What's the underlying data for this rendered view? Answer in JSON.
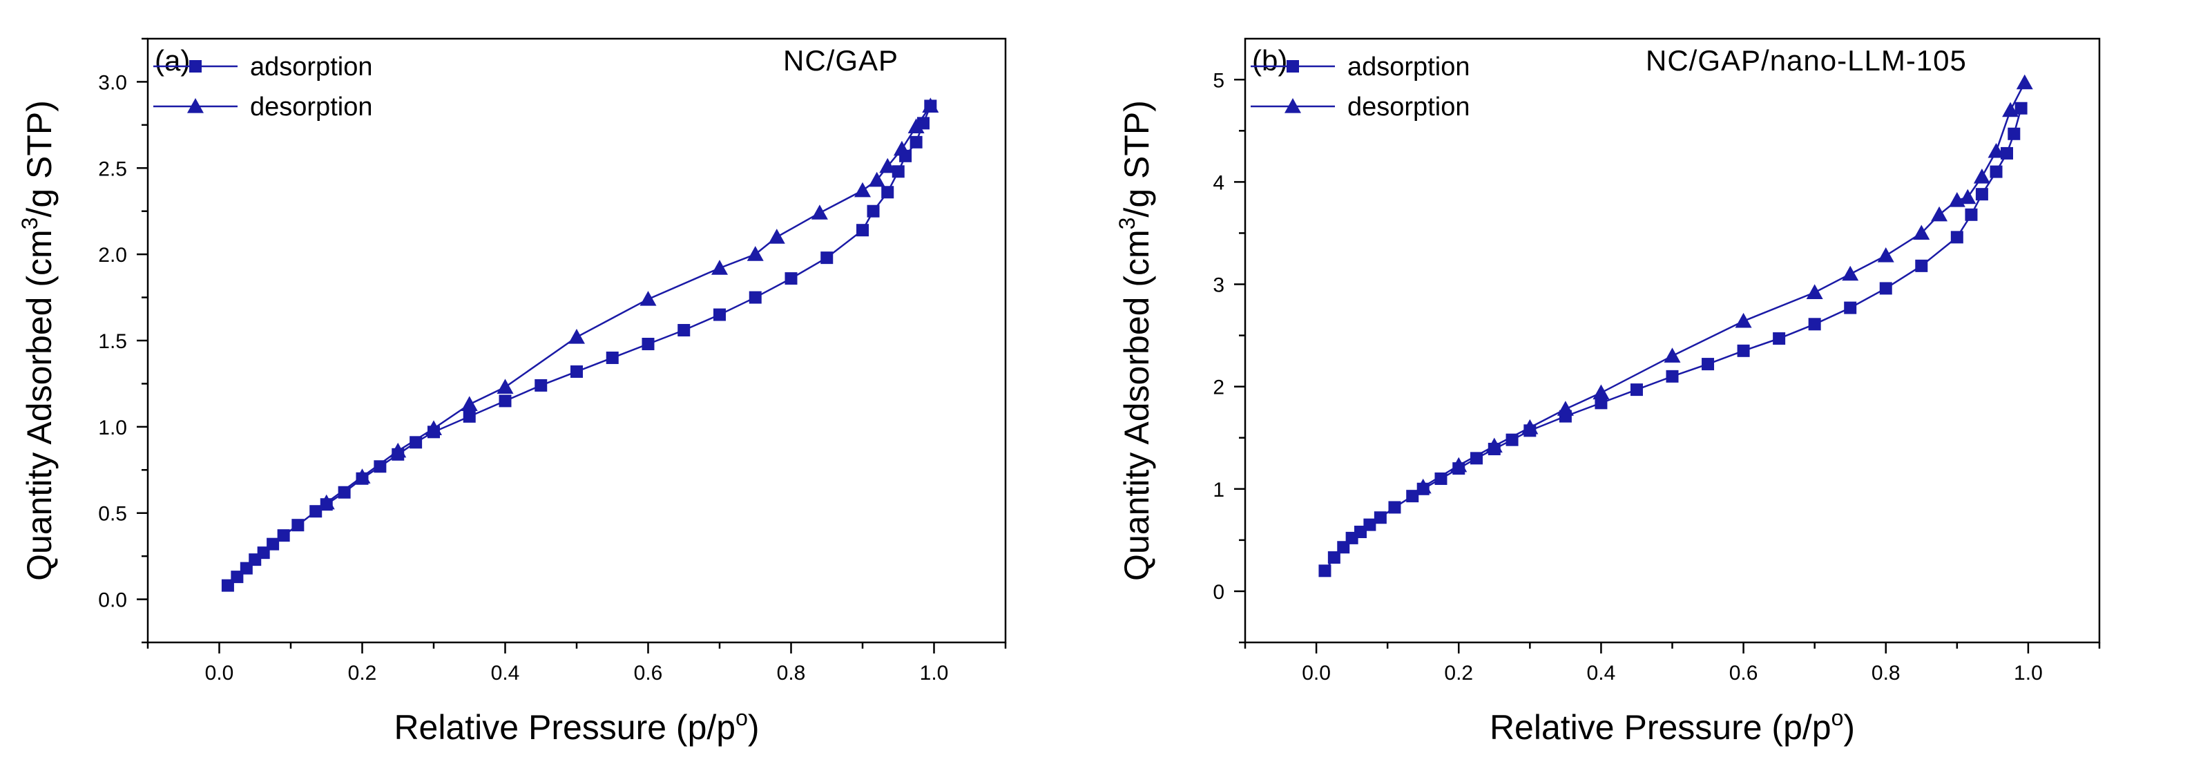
{
  "chart_data": [
    {
      "type": "line",
      "panel_label": "(a)",
      "title": "NC/GAP",
      "xlabel": "Relative Pressure (p/p",
      "xlabel_sup": "o",
      "xlabel_end": ")",
      "ylabel_pre": "Quantity Adsorbed (cm",
      "ylabel_sup": "3",
      "ylabel_post": "/g STP)",
      "xlim": [
        -0.1,
        1.1
      ],
      "ylim": [
        -0.25,
        3.25
      ],
      "x_ticks": [
        0.0,
        0.2,
        0.4,
        0.6,
        0.8,
        1.0
      ],
      "x_tick_labels": [
        "0.0",
        "0.2",
        "0.4",
        "0.6",
        "0.8",
        "1.0"
      ],
      "y_ticks": [
        0.0,
        0.5,
        1.0,
        1.5,
        2.0,
        2.5,
        3.0
      ],
      "y_tick_labels": [
        "0.0",
        "0.5",
        "1.0",
        "1.5",
        "2.0",
        "2.5",
        "3.0"
      ],
      "legend_position": "top-left",
      "series": [
        {
          "name": "adsorption",
          "marker": "square",
          "color": "#1a1aa6",
          "x": [
            0.012,
            0.025,
            0.038,
            0.05,
            0.062,
            0.075,
            0.09,
            0.11,
            0.135,
            0.15,
            0.175,
            0.2,
            0.225,
            0.25,
            0.275,
            0.3,
            0.35,
            0.4,
            0.45,
            0.5,
            0.55,
            0.6,
            0.65,
            0.7,
            0.75,
            0.8,
            0.85,
            0.9,
            0.915,
            0.935,
            0.95,
            0.96,
            0.975,
            0.985,
            0.995
          ],
          "y": [
            0.08,
            0.13,
            0.18,
            0.23,
            0.27,
            0.32,
            0.37,
            0.43,
            0.51,
            0.55,
            0.62,
            0.7,
            0.77,
            0.84,
            0.91,
            0.97,
            1.06,
            1.15,
            1.24,
            1.32,
            1.4,
            1.48,
            1.56,
            1.65,
            1.75,
            1.86,
            1.98,
            2.14,
            2.25,
            2.36,
            2.48,
            2.57,
            2.65,
            2.76,
            2.86
          ]
        },
        {
          "name": "desorption",
          "marker": "triangle",
          "color": "#1a1aa6",
          "x": [
            0.995,
            0.975,
            0.955,
            0.935,
            0.92,
            0.9,
            0.84,
            0.78,
            0.75,
            0.7,
            0.6,
            0.5,
            0.4,
            0.35,
            0.3,
            0.25,
            0.2,
            0.15
          ],
          "y": [
            2.86,
            2.74,
            2.61,
            2.51,
            2.43,
            2.37,
            2.24,
            2.1,
            2.0,
            1.92,
            1.74,
            1.52,
            1.23,
            1.13,
            0.99,
            0.86,
            0.71,
            0.56
          ]
        }
      ]
    },
    {
      "type": "line",
      "panel_label": "(b)",
      "title": "NC/GAP/nano-LLM-105",
      "xlabel": "Relative Pressure (p/p",
      "xlabel_sup": "o",
      "xlabel_end": ")",
      "ylabel_pre": "Quantity Adsorbed (cm",
      "ylabel_sup": "3",
      "ylabel_post": "/g STP)",
      "xlim": [
        -0.1,
        1.1
      ],
      "ylim": [
        -0.5,
        5.4
      ],
      "x_ticks": [
        0.0,
        0.2,
        0.4,
        0.6,
        0.8,
        1.0
      ],
      "x_tick_labels": [
        "0.0",
        "0.2",
        "0.4",
        "0.6",
        "0.8",
        "1.0"
      ],
      "y_ticks": [
        0,
        1,
        2,
        3,
        4,
        5
      ],
      "y_tick_labels": [
        "0",
        "1",
        "2",
        "3",
        "4",
        "5"
      ],
      "legend_position": "top-left",
      "series": [
        {
          "name": "adsorption",
          "marker": "square",
          "color": "#1a1aa6",
          "x": [
            0.012,
            0.025,
            0.038,
            0.05,
            0.062,
            0.075,
            0.09,
            0.11,
            0.135,
            0.15,
            0.175,
            0.2,
            0.225,
            0.25,
            0.275,
            0.3,
            0.35,
            0.4,
            0.45,
            0.5,
            0.55,
            0.6,
            0.65,
            0.7,
            0.75,
            0.8,
            0.85,
            0.9,
            0.92,
            0.935,
            0.955,
            0.97,
            0.98,
            0.99
          ],
          "y": [
            0.2,
            0.33,
            0.43,
            0.52,
            0.58,
            0.65,
            0.72,
            0.82,
            0.93,
            1.0,
            1.1,
            1.2,
            1.3,
            1.39,
            1.48,
            1.57,
            1.71,
            1.84,
            1.97,
            2.1,
            2.22,
            2.35,
            2.47,
            2.61,
            2.77,
            2.96,
            3.18,
            3.46,
            3.68,
            3.88,
            4.1,
            4.28,
            4.47,
            4.72
          ]
        },
        {
          "name": "desorption",
          "marker": "triangle",
          "color": "#1a1aa6",
          "x": [
            0.995,
            0.975,
            0.955,
            0.935,
            0.915,
            0.9,
            0.875,
            0.85,
            0.8,
            0.75,
            0.7,
            0.6,
            0.5,
            0.4,
            0.35,
            0.3,
            0.25,
            0.2,
            0.15
          ],
          "y": [
            4.97,
            4.7,
            4.3,
            4.05,
            3.85,
            3.82,
            3.68,
            3.5,
            3.28,
            3.1,
            2.92,
            2.64,
            2.3,
            1.94,
            1.78,
            1.6,
            1.42,
            1.23,
            1.02
          ]
        }
      ]
    }
  ]
}
